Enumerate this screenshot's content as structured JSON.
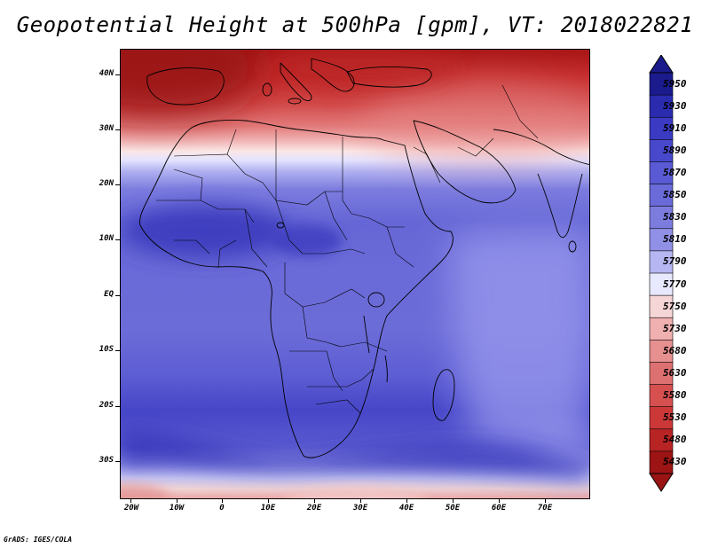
{
  "title": "Geopotential Height at 500hPa [gpm], VT: 2018022821",
  "credit": "GrADS: IGES/COLA",
  "map": {
    "variable": "Geopotential Height",
    "level": "500hPa",
    "units": "gpm",
    "valid_time": "2018022821",
    "lat_labels": [
      "40N",
      "30N",
      "20N",
      "10N",
      "EQ",
      "10S",
      "20S",
      "30S"
    ],
    "lat_values": [
      40,
      30,
      20,
      10,
      0,
      -10,
      -20,
      -30
    ],
    "lon_labels": [
      "20W",
      "10W",
      "0",
      "10E",
      "20E",
      "30E",
      "40E",
      "50E",
      "60E",
      "70E"
    ],
    "lon_values": [
      -20,
      -10,
      0,
      10,
      20,
      30,
      40,
      50,
      60,
      70
    ],
    "lon_range": [
      -22,
      80
    ],
    "lat_range": [
      -37,
      45
    ]
  },
  "colorbar": {
    "levels": [
      "5950",
      "5930",
      "5910",
      "5890",
      "5870",
      "5850",
      "5830",
      "5810",
      "5790",
      "5770",
      "5750",
      "5730",
      "5680",
      "5630",
      "5580",
      "5530",
      "5480",
      "5430"
    ],
    "colors": [
      "#1b1b8e",
      "#2b2bb0",
      "#3a3ac2",
      "#4848cc",
      "#5a5ad4",
      "#6a6ad8",
      "#7c7cdf",
      "#9090e6",
      "#b6b6f2",
      "#e8e8ff",
      "#f5d5d5",
      "#f0b0b0",
      "#e79090",
      "#dd7070",
      "#d65050",
      "#cc3838",
      "#b82424",
      "#9c1414"
    ],
    "top_arrow_color": "#1a1a8a",
    "bottom_arrow_color": "#9a1414"
  }
}
